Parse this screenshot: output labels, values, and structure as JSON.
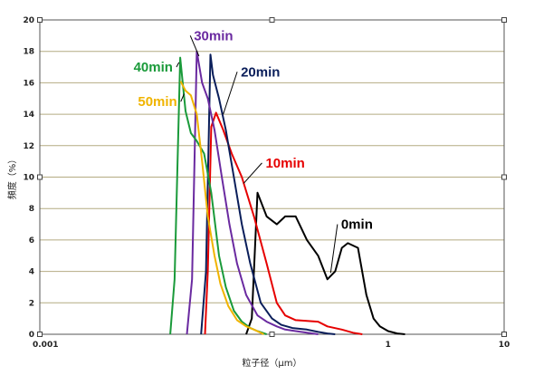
{
  "chart_data": {
    "type": "line",
    "title": "",
    "xlabel": "粒子径（μm）",
    "ylabel": "頻度（%）",
    "xscale": "log",
    "xlim": [
      0.001,
      10
    ],
    "ylim": [
      0,
      20
    ],
    "grid": true,
    "x_tick_labels": [
      "0.001",
      "1",
      "10"
    ],
    "y_tick_labels": [
      "0",
      "2",
      "4",
      "6",
      "8",
      "10",
      "12",
      "14",
      "16",
      "18",
      "20"
    ],
    "series": [
      {
        "name": "0min",
        "color": "#000000",
        "x": [
          0.06,
          0.067,
          0.075,
          0.09,
          0.11,
          0.13,
          0.16,
          0.2,
          0.25,
          0.3,
          0.35,
          0.4,
          0.45,
          0.55,
          0.65,
          0.75,
          0.85,
          1.0,
          1.2,
          1.4
        ],
        "y": [
          0,
          1.0,
          9.0,
          7.5,
          7.0,
          7.5,
          7.5,
          6.0,
          5.0,
          3.5,
          4.0,
          5.5,
          5.8,
          5.5,
          2.5,
          1.0,
          0.5,
          0.2,
          0.05,
          0
        ]
      },
      {
        "name": "10min",
        "color": "#e60000",
        "x": [
          0.0265,
          0.028,
          0.03,
          0.033,
          0.038,
          0.045,
          0.055,
          0.07,
          0.09,
          0.11,
          0.13,
          0.16,
          0.2,
          0.25,
          0.3,
          0.4,
          0.5,
          0.6
        ],
        "y": [
          0,
          4,
          13.2,
          14.1,
          13,
          11.5,
          10,
          7.5,
          4.5,
          2,
          1.2,
          0.9,
          0.85,
          0.8,
          0.5,
          0.3,
          0.1,
          0
        ]
      },
      {
        "name": "20min",
        "color": "#0a1e5a",
        "x": [
          0.0245,
          0.027,
          0.0295,
          0.031,
          0.035,
          0.04,
          0.047,
          0.055,
          0.065,
          0.08,
          0.1,
          0.12,
          0.15,
          0.2,
          0.25,
          0.3,
          0.35
        ],
        "y": [
          0,
          4,
          17.8,
          16.5,
          15,
          13,
          10,
          7,
          4.5,
          2,
          1,
          0.6,
          0.4,
          0.3,
          0.15,
          0.05,
          0
        ]
      },
      {
        "name": "30min",
        "color": "#6a2aa0",
        "x": [
          0.0185,
          0.0205,
          0.0225,
          0.025,
          0.028,
          0.032,
          0.037,
          0.043,
          0.05,
          0.06,
          0.075,
          0.09,
          0.11,
          0.13,
          0.16,
          0.2,
          0.25
        ],
        "y": [
          0,
          3.5,
          18,
          16,
          15,
          13,
          10,
          7,
          4.5,
          2.5,
          1.2,
          0.8,
          0.5,
          0.3,
          0.2,
          0.1,
          0
        ]
      },
      {
        "name": "40min",
        "color": "#1a9a3a",
        "x": [
          0.0133,
          0.0145,
          0.0162,
          0.018,
          0.02,
          0.0225,
          0.026,
          0.03,
          0.035,
          0.04,
          0.047,
          0.055,
          0.065,
          0.075,
          0.09
        ],
        "y": [
          0,
          3.5,
          17.6,
          14.2,
          12.8,
          12.3,
          11.5,
          9,
          5,
          3,
          1.5,
          0.8,
          0.4,
          0.2,
          0
        ]
      },
      {
        "name": "50min",
        "color": "#f0b400",
        "x": [
          0.0163,
          0.018,
          0.02,
          0.0225,
          0.025,
          0.028,
          0.032,
          0.036,
          0.042,
          0.05,
          0.06,
          0.07,
          0.085
        ],
        "y": [
          16.1,
          15.5,
          15.2,
          14,
          11,
          7.5,
          5,
          3.2,
          1.8,
          0.9,
          0.5,
          0.3,
          0
        ]
      }
    ]
  }
}
